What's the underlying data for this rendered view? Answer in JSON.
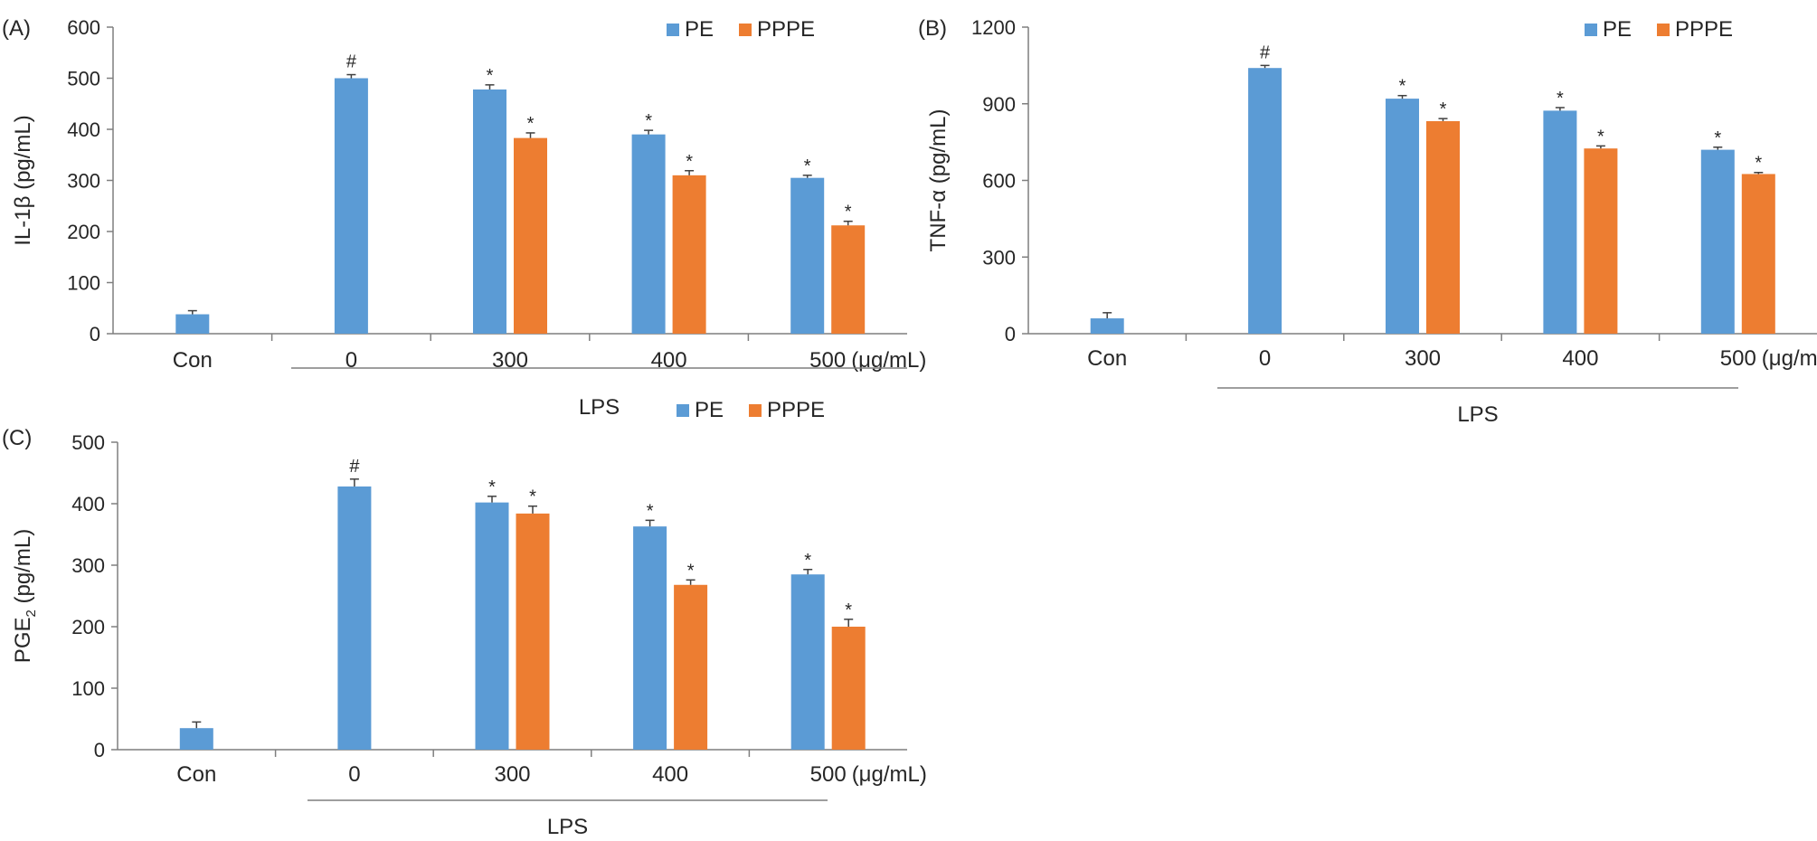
{
  "colors": {
    "pe": "#5b9bd5",
    "pppe": "#ed7d31",
    "axis": "#7f7f7f",
    "text": "#262626"
  },
  "chart_data": [
    {
      "type": "bar",
      "panel_label": "(A)",
      "ylabel": "IL-1β (pg/mL)",
      "ylim": [
        0,
        600
      ],
      "yticks": [
        "0",
        "100",
        "200",
        "300",
        "400",
        "500",
        "600"
      ],
      "categories": [
        "Con",
        "0",
        "300",
        "400",
        "500"
      ],
      "unit_label": "(μg/mL)",
      "group_label": "LPS",
      "legend": [
        "PE",
        "PPPE"
      ],
      "legend_position": "top-right",
      "series": [
        {
          "name": "PE",
          "values": [
            38,
            500,
            478,
            390,
            305
          ],
          "errors": [
            7,
            7,
            9,
            8,
            5
          ],
          "marks": [
            "",
            "#",
            "*",
            "*",
            "*"
          ]
        },
        {
          "name": "PPPE",
          "values": [
            null,
            null,
            383,
            310,
            212
          ],
          "errors": [
            null,
            null,
            10,
            9,
            8
          ],
          "marks": [
            "",
            "",
            "*",
            "*",
            "*"
          ]
        }
      ]
    },
    {
      "type": "bar",
      "panel_label": "(B)",
      "ylabel": "TNF-α (pg/mL)",
      "ylim": [
        0,
        1200
      ],
      "yticks": [
        "0",
        "300",
        "600",
        "900",
        "1200"
      ],
      "categories": [
        "Con",
        "0",
        "300",
        "400",
        "500"
      ],
      "unit_label": "(μg/mL)",
      "group_label": "LPS",
      "legend": [
        "PE",
        "PPPE"
      ],
      "legend_position": "top-right",
      "series": [
        {
          "name": "PE",
          "values": [
            60,
            1040,
            920,
            873,
            720
          ],
          "errors": [
            22,
            10,
            12,
            12,
            10
          ],
          "marks": [
            "",
            "#",
            "*",
            "*",
            "*"
          ]
        },
        {
          "name": "PPPE",
          "values": [
            null,
            null,
            832,
            725,
            625
          ],
          "errors": [
            null,
            null,
            10,
            10,
            6
          ],
          "marks": [
            "",
            "",
            "*",
            "*",
            "*"
          ]
        }
      ]
    },
    {
      "type": "bar",
      "panel_label": "(C)",
      "ylabel": "PGE",
      "ylabel_sub": "2",
      "ylabel_tail": " (pg/mL)",
      "ylim": [
        0,
        500
      ],
      "yticks": [
        "0",
        "100",
        "200",
        "300",
        "400",
        "500"
      ],
      "categories": [
        "Con",
        "0",
        "300",
        "400",
        "500"
      ],
      "unit_label": "(μg/mL)",
      "group_label": "LPS",
      "legend": [
        "PE",
        "PPPE"
      ],
      "legend_position": "top-right",
      "series": [
        {
          "name": "PE",
          "values": [
            35,
            428,
            402,
            363,
            285
          ],
          "errors": [
            10,
            12,
            10,
            10,
            8
          ],
          "marks": [
            "",
            "#",
            "*",
            "*",
            "*"
          ]
        },
        {
          "name": "PPPE",
          "values": [
            null,
            null,
            384,
            268,
            200
          ],
          "errors": [
            null,
            null,
            12,
            8,
            12
          ],
          "marks": [
            "",
            "",
            "*",
            "*",
            "*"
          ]
        }
      ]
    }
  ]
}
